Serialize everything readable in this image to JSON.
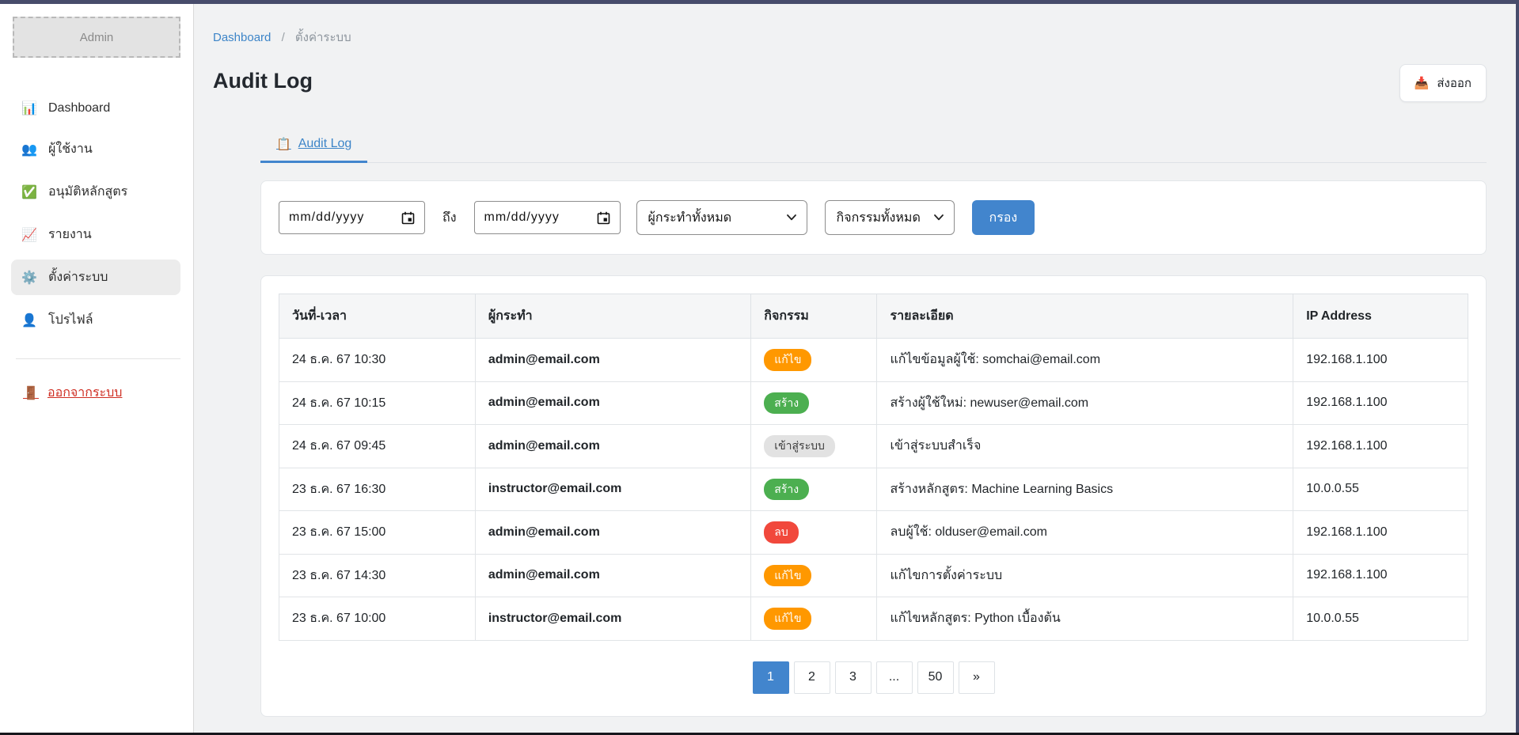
{
  "colors": {
    "frame": "#474c6b",
    "accent_blue": "#4285cd",
    "badge_edit": "#ff9800",
    "badge_create": "#4caf50",
    "badge_delete": "#f1483c",
    "badge_login_bg": "#e2e2e2",
    "logout_red": "#cf2e23",
    "link_blue": "#3d85c8"
  },
  "sidebar": {
    "logo_text": "Admin",
    "items": [
      {
        "id": "dashboard",
        "icon": "📊",
        "icon_name": "bar-chart-icon",
        "label": "Dashboard",
        "active": false
      },
      {
        "id": "users",
        "icon": "👥",
        "icon_name": "users-icon",
        "label": "ผู้ใช้งาน",
        "active": false
      },
      {
        "id": "course-approval",
        "icon": "✅",
        "icon_name": "check-mark-icon",
        "label": "อนุมัติหลักสูตร",
        "active": false
      },
      {
        "id": "reports",
        "icon": "📈",
        "icon_name": "chart-increasing-icon",
        "label": "รายงาน",
        "active": false
      },
      {
        "id": "settings",
        "icon": "⚙️",
        "icon_name": "gear-icon",
        "label": "ตั้งค่าระบบ",
        "active": true
      },
      {
        "id": "profile",
        "icon": "👤",
        "icon_name": "user-icon",
        "label": "โปรไฟล์",
        "active": false
      }
    ],
    "logout": {
      "icon": "🚪",
      "icon_name": "door-icon",
      "label": "ออกจากระบบ"
    }
  },
  "breadcrumb": {
    "link": "Dashboard",
    "separator": "/",
    "current": "ตั้งค่าระบบ"
  },
  "page": {
    "title": "Audit Log"
  },
  "export_button": {
    "icon": "📥",
    "label": "ส่งออก"
  },
  "tabs": [
    {
      "icon": "📋",
      "icon_name": "clipboard-icon",
      "label": "Audit Log",
      "active": true
    }
  ],
  "filters": {
    "date_from_value": "mm/dd/yyyy",
    "to_label": "ถึง",
    "date_to_value": "mm/dd/yyyy",
    "actor_select_value": "ผู้กระทำทั้งหมด",
    "activity_select_value": "กิจกรรมทั้งหมด",
    "filter_button_label": "กรอง"
  },
  "table": {
    "headers": [
      "วันที่-เวลา",
      "ผู้กระทำ",
      "กิจกรรม",
      "รายละเอียด",
      "IP Address"
    ],
    "column_widths": [
      "16.5%",
      "23.2%",
      "10.6%",
      "35%",
      "14.7%"
    ],
    "rows": [
      {
        "datetime": "24 ธ.ค. 67 10:30",
        "actor": "admin@email.com",
        "action": "แก้ไข",
        "action_type": "edit",
        "details": "แก้ไขข้อมูลผู้ใช้: somchai@email.com",
        "ip": "192.168.1.100"
      },
      {
        "datetime": "24 ธ.ค. 67 10:15",
        "actor": "admin@email.com",
        "action": "สร้าง",
        "action_type": "create",
        "details": "สร้างผู้ใช้ใหม่: newuser@email.com",
        "ip": "192.168.1.100"
      },
      {
        "datetime": "24 ธ.ค. 67 09:45",
        "actor": "admin@email.com",
        "action": "เข้าสู่ระบบ",
        "action_type": "login",
        "details": "เข้าสู่ระบบสำเร็จ",
        "ip": "192.168.1.100"
      },
      {
        "datetime": "23 ธ.ค. 67 16:30",
        "actor": "instructor@email.com",
        "action": "สร้าง",
        "action_type": "create",
        "details": "สร้างหลักสูตร: Machine Learning Basics",
        "ip": "10.0.0.55"
      },
      {
        "datetime": "23 ธ.ค. 67 15:00",
        "actor": "admin@email.com",
        "action": "ลบ",
        "action_type": "delete",
        "details": "ลบผู้ใช้: olduser@email.com",
        "ip": "192.168.1.100"
      },
      {
        "datetime": "23 ธ.ค. 67 14:30",
        "actor": "admin@email.com",
        "action": "แก้ไข",
        "action_type": "edit",
        "details": "แก้ไขการตั้งค่าระบบ",
        "ip": "192.168.1.100"
      },
      {
        "datetime": "23 ธ.ค. 67 10:00",
        "actor": "instructor@email.com",
        "action": "แก้ไข",
        "action_type": "edit",
        "details": "แก้ไขหลักสูตร: Python เบื้องต้น",
        "ip": "10.0.0.55"
      }
    ]
  },
  "pagination": {
    "pages": [
      "1",
      "2",
      "3",
      "...",
      "50",
      "»"
    ],
    "active": "1"
  }
}
